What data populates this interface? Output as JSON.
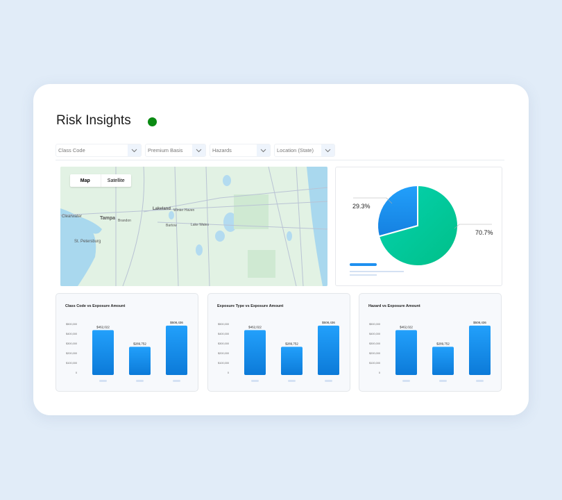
{
  "header": {
    "title": "Risk Insights",
    "status_color": "#0a8a12"
  },
  "filters": [
    {
      "label": "Class Code"
    },
    {
      "label": "Premium Basis"
    },
    {
      "label": "Hazards"
    },
    {
      "label": "Location (State)"
    }
  ],
  "map": {
    "toggle": {
      "map_label": "Map",
      "satellite_label": "Satellite",
      "selected": "Map"
    },
    "labels": [
      "Tampa",
      "Lakeland",
      "Clearwater",
      "St. Petersburg",
      "Brandon",
      "Bartow",
      "Lake Wales",
      "Winter Haven"
    ]
  },
  "pie": {
    "slices": [
      {
        "label": "29.3%",
        "value": 29.3,
        "color": "#1e90f0"
      },
      {
        "label": "70.7%",
        "value": 70.7,
        "color": "#00c896"
      }
    ]
  },
  "chart_data": [
    {
      "type": "bar",
      "title": "Class Code vs Exposure Amount",
      "y_ticks": [
        "0",
        "$100,000",
        "$200,000",
        "$300,000",
        "$400,000",
        "$500,000"
      ],
      "ylim": [
        0,
        500000
      ],
      "values": [
        462022,
        289752,
        508436
      ],
      "data_labels": [
        "$462,022",
        "$289,752",
        "$508,436"
      ]
    },
    {
      "type": "bar",
      "title": "Exposure Type vs Exposure Amount",
      "y_ticks": [
        "0",
        "$100,000",
        "$200,000",
        "$300,000",
        "$400,000",
        "$500,000"
      ],
      "ylim": [
        0,
        500000
      ],
      "values": [
        462022,
        289752,
        508436
      ],
      "data_labels": [
        "$462,022",
        "$289,752",
        "$508,436"
      ]
    },
    {
      "type": "bar",
      "title": "Hazard vs Exposure Amount",
      "y_ticks": [
        "0",
        "$100,000",
        "$200,000",
        "$300,000",
        "$400,000",
        "$500,000"
      ],
      "ylim": [
        0,
        500000
      ],
      "values": [
        462022,
        289752,
        508436
      ],
      "data_labels": [
        "$462,022",
        "$289,752",
        "$508,436"
      ]
    }
  ],
  "colors": {
    "bar_top": "#22a0fb",
    "bar_bottom": "#0c7ad8",
    "accent": "#1e90f0"
  }
}
